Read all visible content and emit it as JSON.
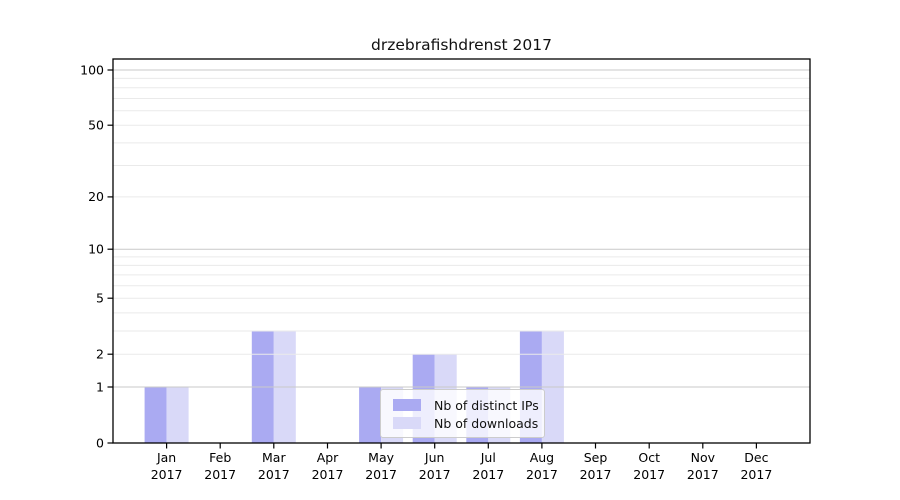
{
  "figure": {
    "background": "#ffffff"
  },
  "chart_data": {
    "type": "bar",
    "title": "drzebrafishdrenst 2017",
    "categories": [
      "Jan",
      "Feb",
      "Mar",
      "Apr",
      "May",
      "Jun",
      "Jul",
      "Aug",
      "Sep",
      "Oct",
      "Nov",
      "Dec"
    ],
    "category_year": "2017",
    "series": [
      {
        "name": "Nb of distinct IPs",
        "color": "#aaaaf2",
        "values": [
          1,
          0,
          3,
          0,
          1,
          2,
          1,
          3,
          0,
          0,
          0,
          0
        ]
      },
      {
        "name": "Nb of downloads",
        "color": "#d9d9f8",
        "values": [
          1,
          0,
          3,
          0,
          1,
          2,
          1,
          3,
          0,
          0,
          0,
          0
        ]
      }
    ],
    "xlabel": "",
    "ylabel": "",
    "yscale": "log1p",
    "ylim": [
      0,
      115
    ],
    "ytick_labels": [
      0,
      1,
      2,
      5,
      10,
      20,
      50,
      100
    ],
    "grid": {
      "on": true,
      "major_values": [
        1,
        10,
        100
      ],
      "minor_values": [
        2,
        3,
        4,
        5,
        6,
        7,
        8,
        9,
        20,
        30,
        40,
        50,
        60,
        70,
        80,
        90
      ],
      "major_color": "#c9c9c9",
      "minor_color": "#eaeaea"
    },
    "legend": {
      "position": "lower center",
      "entries": [
        "Nb of distinct IPs",
        "Nb of downloads"
      ]
    },
    "axis_color": "#000000"
  }
}
